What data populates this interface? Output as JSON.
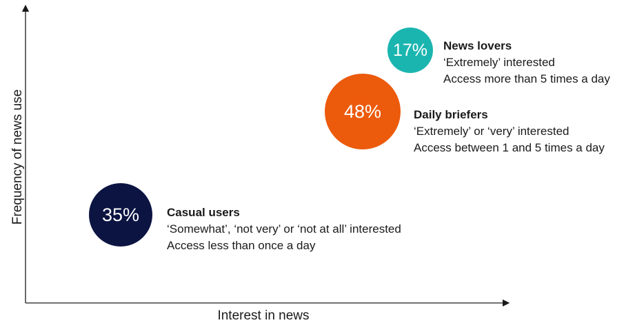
{
  "axes": {
    "x_label": "Interest in news",
    "y_label": "Frequency of news use"
  },
  "colors": {
    "axis": "#1a1a1a",
    "news_lovers": "#1bb5b0",
    "daily_briefers": "#ec5a0c",
    "casual_users": "#0c1442"
  },
  "segments": {
    "news_lovers": {
      "percent": "17%",
      "title": "News lovers",
      "line1": "‘Extremely’ interested",
      "line2": "Access more than 5 times a day"
    },
    "daily_briefers": {
      "percent": "48%",
      "title": "Daily briefers",
      "line1": "‘Extremely’ or ‘very’ interested",
      "line2": "Access between 1 and 5 times a day"
    },
    "casual_users": {
      "percent": "35%",
      "title": "Casual users",
      "line1": "‘Somewhat’, ‘not very’ or ‘not at all’ interested",
      "line2": "Access less than once a day"
    }
  }
}
